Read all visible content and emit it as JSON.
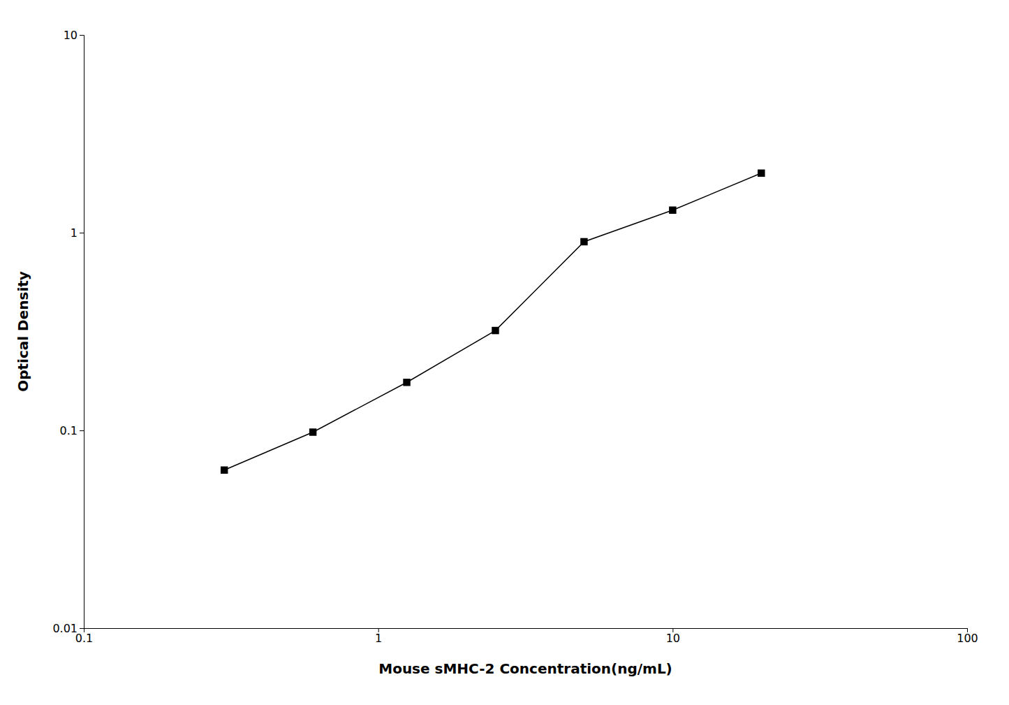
{
  "chart_data": {
    "type": "line",
    "x": [
      0.3,
      0.6,
      1.25,
      2.5,
      5.0,
      10.0,
      20.0
    ],
    "values": [
      0.063,
      0.098,
      0.175,
      0.32,
      0.9,
      1.3,
      2.0
    ],
    "xlabel": "Mouse sMHC-2 Concentration(ng/mL)",
    "ylabel": "Optical Density",
    "xlim": [
      0.1,
      100
    ],
    "ylim": [
      0.01,
      10
    ],
    "xticks": [
      0.1,
      1,
      10,
      100
    ],
    "yticks": [
      0.01,
      0.1,
      1,
      10
    ],
    "log": true,
    "grid": false,
    "color": "#000000",
    "marker": "square"
  }
}
